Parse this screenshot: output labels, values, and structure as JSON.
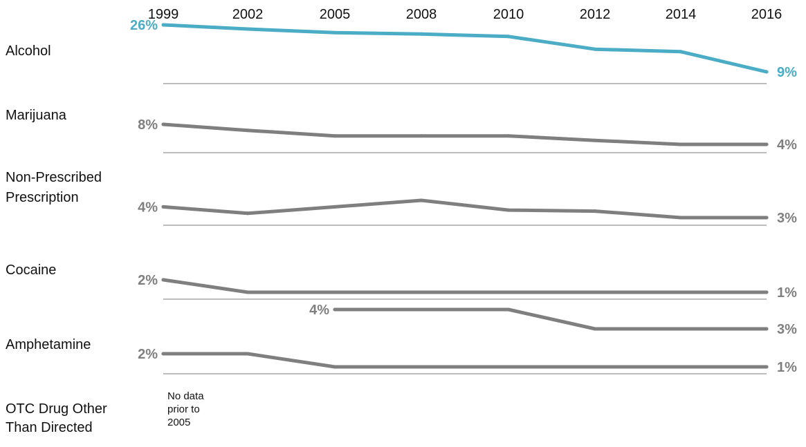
{
  "chart_data": {
    "type": "line",
    "years": [
      "1999",
      "2002",
      "2005",
      "2008",
      "2010",
      "2012",
      "2014",
      "2016"
    ],
    "colors": {
      "highlight": "#4bacc6",
      "default": "#7f7f7f",
      "separator": "#a6a6a6"
    },
    "series": [
      {
        "name_lines": [
          "Alcohol"
        ],
        "highlight": true,
        "values": [
          26,
          24.5,
          23.2,
          22.7,
          21.8,
          17.2,
          16.3,
          9
        ],
        "start_label": "26%",
        "end_label": "9%"
      },
      {
        "name_lines": [
          "Marijuana"
        ],
        "highlight": false,
        "values": [
          8,
          6.8,
          5.7,
          5.7,
          5.7,
          4.8,
          4,
          4
        ],
        "start_label": "8%",
        "end_label": "4%"
      },
      {
        "name_lines": [
          "Non-Prescribed",
          "Prescription"
        ],
        "highlight": false,
        "values": [
          4,
          3.4,
          4,
          4.6,
          3.7,
          3.6,
          3,
          3
        ],
        "start_label": "4%",
        "end_label": "3%"
      },
      {
        "name_lines": [
          "Cocaine"
        ],
        "highlight": false,
        "values": [
          2,
          1,
          1,
          1,
          1,
          1,
          1,
          1
        ],
        "start_label": "2%",
        "end_label": "1%"
      },
      {
        "name_lines": [
          "Amphetamine"
        ],
        "highlight": false,
        "values": [
          2,
          2,
          1,
          1,
          1,
          1,
          1,
          1
        ],
        "start_label": "2%",
        "end_label": "1%"
      },
      {
        "name_lines": [
          "OTC Drug Other",
          "Than Directed"
        ],
        "highlight": false,
        "values": [
          null,
          null,
          4,
          4,
          4,
          3,
          3,
          3
        ],
        "start_label": "4%",
        "end_label": "3%",
        "note_lines": [
          "No data",
          "prior to",
          "2005"
        ]
      }
    ]
  }
}
